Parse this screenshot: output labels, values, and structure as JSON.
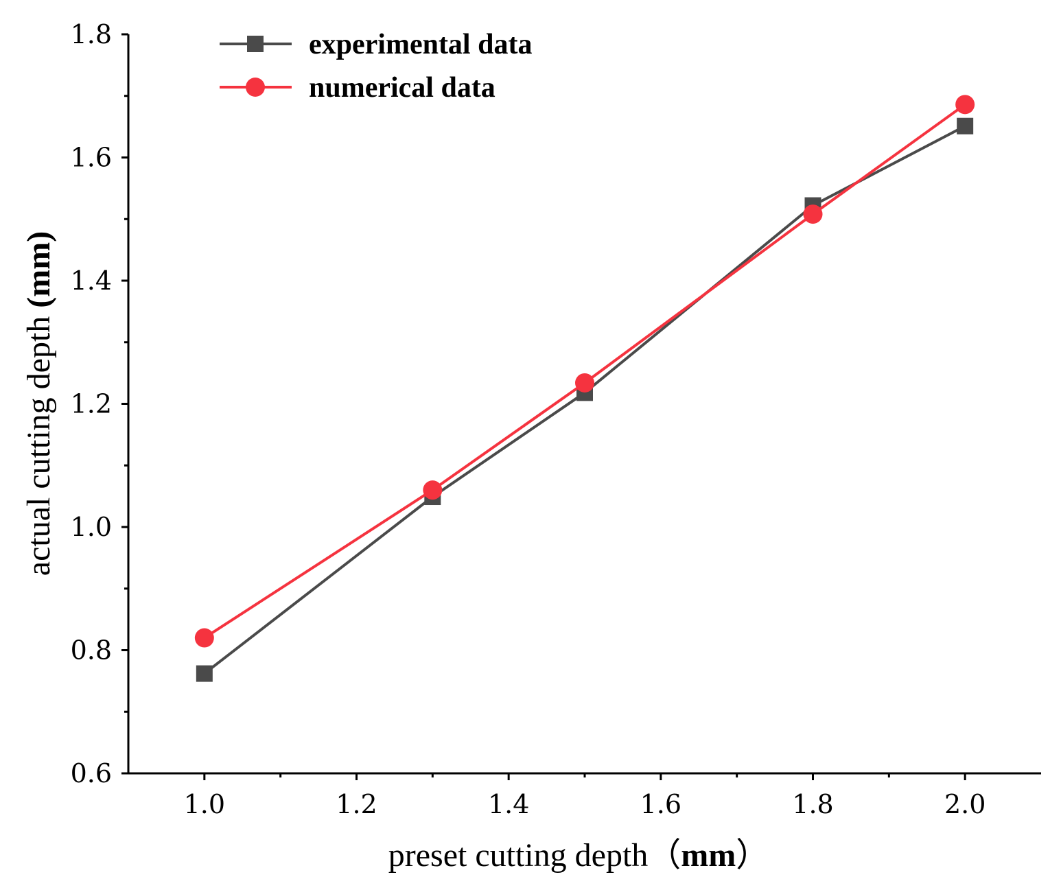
{
  "chart_data": {
    "type": "line",
    "x": [
      1.0,
      1.3,
      1.5,
      1.8,
      2.0
    ],
    "series": [
      {
        "name": "experimental data",
        "values": [
          0.762,
          1.049,
          1.218,
          1.522,
          1.651
        ],
        "color": "#4a4a4a",
        "marker": "square"
      },
      {
        "name": "numerical data",
        "values": [
          0.82,
          1.06,
          1.234,
          1.508,
          1.686
        ],
        "color": "#f5333f",
        "marker": "circle"
      }
    ],
    "xlabel": "preset cutting depth（",
    "xlabel_unit": "mm",
    "xlabel_close": "）",
    "ylabel": "actual cutting depth ",
    "ylabel_unit": "(mm)",
    "xlim": [
      0.9,
      2.1
    ],
    "ylim": [
      0.6,
      1.8
    ],
    "xticks": [
      "1.0",
      "1.2",
      "1.4",
      "1.6",
      "1.8",
      "2.0"
    ],
    "xtick_values": [
      1.0,
      1.2,
      1.4,
      1.6,
      1.8,
      2.0
    ],
    "yticks": [
      "0.6",
      "0.8",
      "1.0",
      "1.2",
      "1.4",
      "1.6",
      "1.8"
    ],
    "ytick_values": [
      0.6,
      0.8,
      1.0,
      1.2,
      1.4,
      1.6,
      1.8
    ],
    "grid": false,
    "legend_position": "top-left"
  }
}
